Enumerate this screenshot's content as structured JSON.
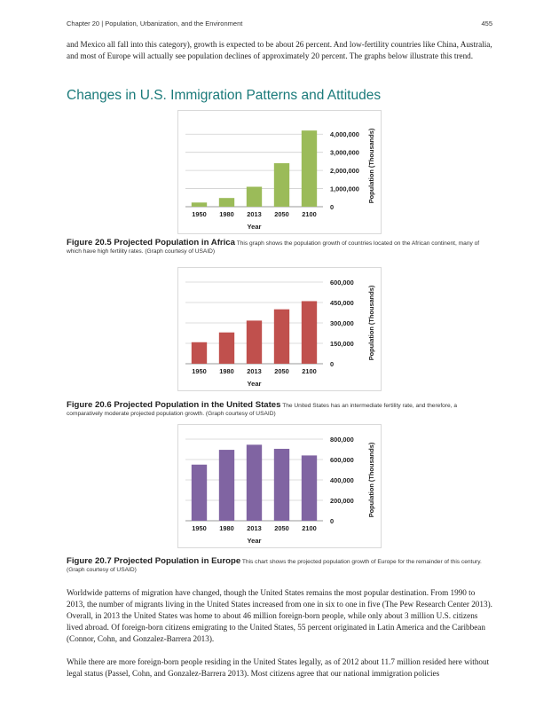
{
  "header": {
    "chapter": "Chapter 20 | Population, Urbanization, and the Environment",
    "page_number": "455"
  },
  "intro_paragraph": "and Mexico all fall into this category), growth is expected to be about 26 percent. And low-fertility countries like China, Australia, and most of Europe will actually see population declines of approximately 20 percent. The graphs below illustrate this trend.",
  "section_title": "Changes in U.S. Immigration Patterns and Attitudes",
  "figures": [
    {
      "caption_title": "Figure 20.5 Projected Population in Africa",
      "caption_text": "This graph shows the population growth of countries located on the African continent, many of which have high fertility rates. (Graph courtesy of USAID)"
    },
    {
      "caption_title": "Figure 20.6 Projected Population in the United States",
      "caption_text": "The United States has an intermediate fertility rate, and therefore, a comparatively moderate projected population growth. (Graph courtesy of USAID)"
    },
    {
      "caption_title": "Figure 20.7 Projected Population in Europe",
      "caption_text": "This chart shows the projected population growth of Europe for the remainder of this century. (Graph courtesy of USAID)"
    }
  ],
  "body_paragraphs": [
    "Worldwide patterns of migration have changed, though the United States remains the most popular destination. From 1990 to 2013, the number of migrants living in the United States increased from one in six to one in five (The Pew Research Center 2013). Overall, in 2013 the United States was home to about 46 million foreign-born people, while only about 3 million U.S. citizens lived abroad. Of foreign-born citizens emigrating to the United States, 55 percent originated in Latin America and the Caribbean (Connor, Cohn, and Gonzalez-Barrera 2013).",
    "While there are more foreign-born people residing in the United States legally, as of 2012 about 11.7 million resided here without legal status (Passel, Cohn, and Gonzalez-Barrera 2013). Most citizens agree that our national immigration policies"
  ],
  "chart_data": [
    {
      "type": "bar",
      "categories": [
        "1950",
        "1980",
        "2013",
        "2050",
        "2100"
      ],
      "values": [
        230000,
        480000,
        1100000,
        2400000,
        4200000
      ],
      "xlabel": "Year",
      "ylabel": "Population (Thousands)",
      "ylim": [
        0,
        4500000
      ],
      "yticks": [
        0,
        1000000,
        2000000,
        3000000,
        4000000
      ],
      "ytick_labels": [
        "0",
        "1,000,000",
        "2,000,000",
        "3,000,000",
        "4,000,000"
      ],
      "color": "#9bbb59",
      "grid": true
    },
    {
      "type": "bar",
      "categories": [
        "1950",
        "1980",
        "2013",
        "2050",
        "2100"
      ],
      "values": [
        158000,
        230000,
        317000,
        400000,
        460000
      ],
      "xlabel": "Year",
      "ylabel": "Population (Thousands)",
      "ylim": [
        0,
        600000
      ],
      "yticks": [
        0,
        150000,
        300000,
        450000,
        600000
      ],
      "ytick_labels": [
        "0",
        "150,000",
        "300,000",
        "450,000",
        "600,000"
      ],
      "color": "#c0504d",
      "grid": true
    },
    {
      "type": "bar",
      "categories": [
        "1950",
        "1980",
        "2013",
        "2050",
        "2100"
      ],
      "values": [
        550000,
        695000,
        745000,
        705000,
        640000
      ],
      "xlabel": "Year",
      "ylabel": "Population (Thousands)",
      "ylim": [
        0,
        800000
      ],
      "yticks": [
        0,
        200000,
        400000,
        600000,
        800000
      ],
      "ytick_labels": [
        "0",
        "200,000",
        "400,000",
        "600,000",
        "800,000"
      ],
      "color": "#8064a2",
      "grid": true
    }
  ]
}
